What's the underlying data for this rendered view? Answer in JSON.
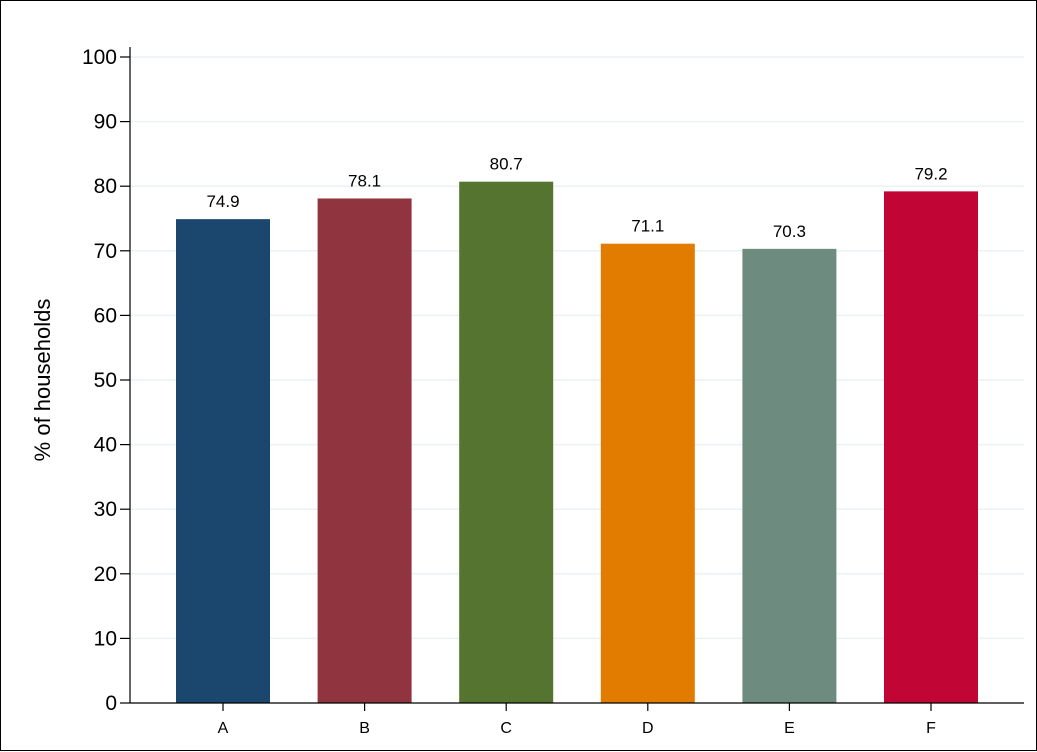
{
  "chart_data": {
    "type": "bar",
    "title": "",
    "xlabel": "",
    "ylabel": "% of households",
    "ylim": [
      0,
      100
    ],
    "yticks": [
      0,
      10,
      20,
      30,
      40,
      50,
      60,
      70,
      80,
      90,
      100
    ],
    "grid": true,
    "categories": [
      "A",
      "B",
      "C",
      "D",
      "E",
      "F"
    ],
    "values": [
      74.9,
      78.1,
      80.7,
      71.1,
      70.3,
      79.2
    ],
    "value_labels": [
      "74.9",
      "78.1",
      "80.7",
      "71.1",
      "70.3",
      "79.2"
    ],
    "colors": [
      "#1b476e",
      "#90343f",
      "#55742f",
      "#e27c00",
      "#6d8b7f",
      "#c10534"
    ],
    "grid_color": "#eaf2f3",
    "background": "#ffffff"
  }
}
